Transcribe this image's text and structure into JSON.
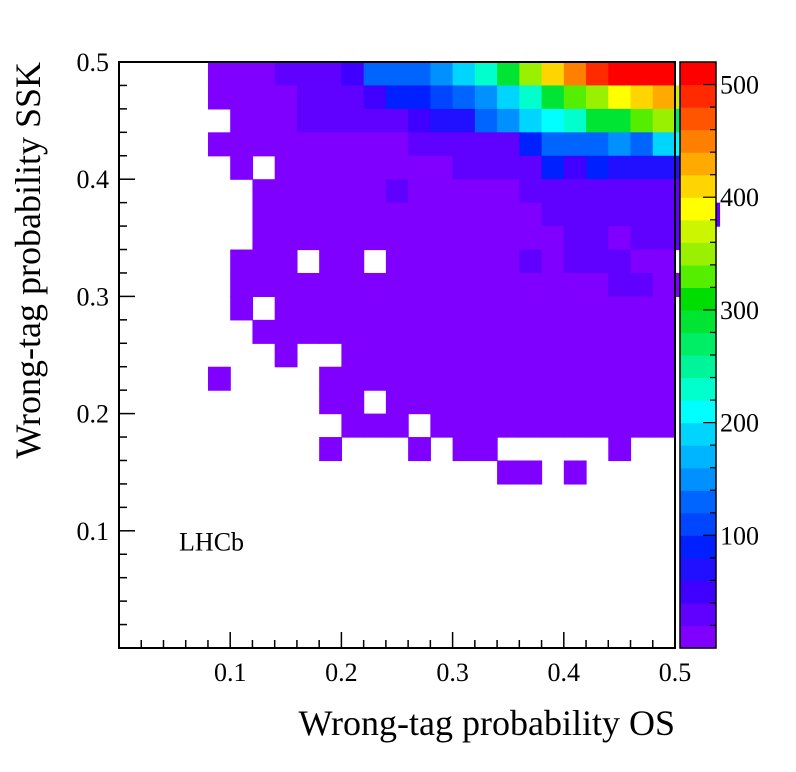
{
  "chart_data": {
    "type": "heatmap",
    "xlabel": "Wrong-tag probability OS",
    "ylabel": "Wrong-tag probability SSK",
    "annotation": "LHCb",
    "xlim": [
      0,
      0.5
    ],
    "ylim": [
      0,
      0.5
    ],
    "x_ticks": [
      "0.1",
      "0.2",
      "0.3",
      "0.4",
      "0.5"
    ],
    "y_ticks": [
      "0.1",
      "0.2",
      "0.3",
      "0.4",
      "0.5"
    ],
    "bin_width": 0.02,
    "colorbar": {
      "min": 0,
      "max": 520,
      "ticks": [
        "100",
        "200",
        "300",
        "400",
        "500"
      ]
    },
    "rows": [
      {
        "y": 0.49,
        "x_start": 0.08,
        "values": [
          10,
          10,
          10,
          20,
          25,
          25,
          50,
          120,
          120,
          120,
          150,
          180,
          230,
          280,
          350,
          400,
          440,
          480,
          500,
          510,
          520
        ]
      },
      {
        "y": 0.47,
        "x_start": 0.08,
        "values": [
          10,
          10,
          10,
          10,
          25,
          25,
          25,
          40,
          90,
          90,
          100,
          120,
          150,
          180,
          230,
          280,
          320,
          340,
          380,
          410,
          420,
          360
        ]
      },
      {
        "y": 0.45,
        "x_start": 0.1,
        "values": [
          10,
          10,
          10,
          25,
          25,
          25,
          30,
          30,
          50,
          70,
          70,
          130,
          150,
          180,
          200,
          220,
          280,
          300,
          320,
          340,
          270
        ]
      },
      {
        "y": 0.43,
        "x_start": 0.08,
        "values": [
          10,
          10,
          10,
          10,
          10,
          10,
          10,
          15,
          15,
          20,
          20,
          20,
          25,
          35,
          80,
          120,
          120,
          120,
          140,
          120,
          180,
          200
        ]
      },
      {
        "y": 0.41,
        "x_start": 0.1,
        "values": [
          10,
          null,
          10,
          10,
          10,
          10,
          10,
          10,
          10,
          10,
          25,
          25,
          25,
          25,
          80,
          40,
          80,
          60,
          60,
          60,
          60
        ]
      },
      {
        "y": 0.39,
        "x_start": 0.12,
        "values": [
          10,
          10,
          10,
          10,
          10,
          10,
          20,
          10,
          10,
          10,
          10,
          10,
          25,
          30,
          30,
          30,
          30,
          30,
          30,
          30
        ]
      },
      {
        "y": 0.37,
        "x_start": 0.12,
        "values": [
          10,
          10,
          10,
          10,
          10,
          10,
          10,
          10,
          10,
          10,
          10,
          10,
          10,
          20,
          20,
          20,
          20,
          20,
          20,
          30,
          20
        ]
      },
      {
        "y": 0.35,
        "x_start": 0.12,
        "values": [
          10,
          10,
          10,
          10,
          10,
          10,
          10,
          10,
          10,
          10,
          10,
          10,
          10,
          10,
          20,
          20,
          10,
          20,
          20,
          20
        ]
      },
      {
        "y": 0.33,
        "x_start": 0.1,
        "values": [
          10,
          10,
          10,
          null,
          10,
          10,
          null,
          10,
          10,
          10,
          10,
          10,
          10,
          20,
          10,
          20,
          20,
          20,
          10,
          10
        ]
      },
      {
        "y": 0.31,
        "x_start": 0.1,
        "values": [
          10,
          10,
          10,
          10,
          10,
          10,
          10,
          10,
          10,
          10,
          10,
          10,
          10,
          10,
          10,
          10,
          10,
          20,
          20,
          10,
          10
        ]
      },
      {
        "y": 0.29,
        "x_start": 0.1,
        "values": [
          10,
          null,
          10,
          10,
          10,
          10,
          10,
          10,
          10,
          10,
          10,
          10,
          10,
          10,
          10,
          10,
          10,
          10,
          10,
          10
        ]
      },
      {
        "y": 0.27,
        "x_start": 0.12,
        "values": [
          10,
          10,
          10,
          10,
          10,
          10,
          10,
          10,
          10,
          10,
          10,
          10,
          10,
          10,
          10,
          10,
          10,
          10,
          10
        ]
      },
      {
        "y": 0.25,
        "x_start": 0.14,
        "values": [
          10,
          null,
          null,
          10,
          10,
          10,
          10,
          10,
          10,
          10,
          10,
          10,
          10,
          10,
          10,
          10,
          10,
          10
        ]
      },
      {
        "y": 0.23,
        "x_start": 0.08,
        "values": [
          10,
          null,
          null,
          null,
          null,
          10,
          10,
          10,
          10,
          10,
          10,
          10,
          10,
          10,
          10,
          10,
          10,
          10,
          10,
          10,
          10
        ]
      },
      {
        "y": 0.21,
        "x_start": 0.18,
        "values": [
          10,
          10,
          null,
          10,
          10,
          10,
          10,
          10,
          10,
          10,
          10,
          10,
          10,
          10,
          10,
          10
        ]
      },
      {
        "y": 0.19,
        "x_start": 0.2,
        "values": [
          10,
          10,
          10,
          null,
          10,
          10,
          10,
          10,
          10,
          10,
          10,
          10,
          10,
          10,
          10
        ]
      },
      {
        "y": 0.17,
        "x_start": 0.18,
        "values": [
          10,
          null,
          null,
          null,
          10,
          null,
          10,
          10,
          null,
          null,
          null,
          null,
          null,
          10
        ]
      },
      {
        "y": 0.15,
        "x_start": 0.34,
        "values": [
          10,
          10,
          null,
          10
        ]
      }
    ]
  }
}
